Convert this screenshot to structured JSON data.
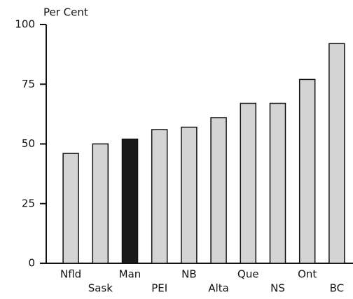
{
  "chart_data": {
    "type": "bar",
    "y_axis_label": "Per Cent",
    "categories": [
      "Nfld",
      "Sask",
      "Man",
      "PEI",
      "NB",
      "Alta",
      "Que",
      "NS",
      "Ont",
      "BC"
    ],
    "values": [
      46,
      50,
      52,
      56,
      57,
      61,
      67,
      67,
      77,
      92
    ],
    "colors": [
      "#d4d4d4",
      "#d4d4d4",
      "#1a1a1a",
      "#d4d4d4",
      "#d4d4d4",
      "#d4d4d4",
      "#d4d4d4",
      "#d4d4d4",
      "#d4d4d4",
      "#d4d4d4"
    ],
    "ylim": [
      0,
      100
    ],
    "yticks": [
      0,
      25,
      50,
      75,
      100
    ],
    "grid": false
  }
}
